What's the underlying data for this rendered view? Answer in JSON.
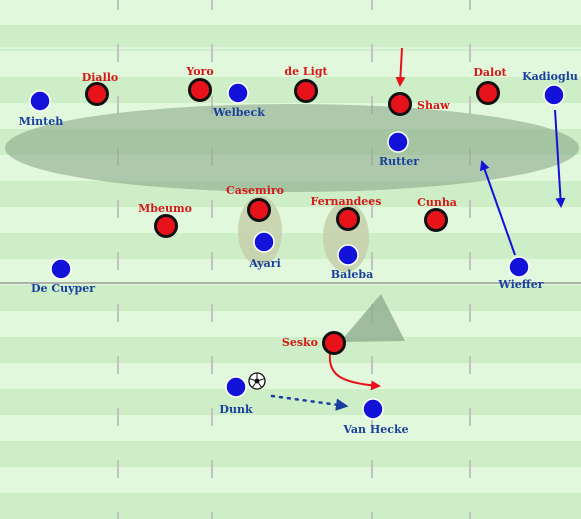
{
  "colors": {
    "grass_light": "#e2f8dc",
    "grass_dark": "#cdeec6",
    "red_team": "#e8121b",
    "blue_team": "#1212d8",
    "red_label": "#d41818",
    "blue_label": "#1a3f9e",
    "shape_fill": "#8aa88a"
  },
  "red_players": [
    {
      "id": "diallo",
      "name": "Diallo"
    },
    {
      "id": "yoro",
      "name": "Yoro"
    },
    {
      "id": "de-ligt",
      "name": "de Ligt"
    },
    {
      "id": "shaw",
      "name": "Shaw"
    },
    {
      "id": "dalot",
      "name": "Dalot"
    },
    {
      "id": "casemiro",
      "name": "Casemiro"
    },
    {
      "id": "fernandees",
      "name": "Fernandees"
    },
    {
      "id": "mbeumo",
      "name": "Mbeumo"
    },
    {
      "id": "cunha",
      "name": "Cunha"
    },
    {
      "id": "sesko",
      "name": "Sesko"
    }
  ],
  "blue_players": [
    {
      "id": "minteh",
      "name": "Minteh"
    },
    {
      "id": "welbeck",
      "name": "Welbeck"
    },
    {
      "id": "kadioglu",
      "name": "Kadioglu"
    },
    {
      "id": "rutter",
      "name": "Rutter"
    },
    {
      "id": "ayari",
      "name": "Ayari"
    },
    {
      "id": "baleba",
      "name": "Baleba"
    },
    {
      "id": "de-cuyper",
      "name": "De Cuyper"
    },
    {
      "id": "wieffer",
      "name": "Wieffer"
    },
    {
      "id": "dunk",
      "name": "Dunk"
    },
    {
      "id": "van-hecke",
      "name": "Van Hecke"
    }
  ],
  "ball_icon": "soccer-ball-icon"
}
